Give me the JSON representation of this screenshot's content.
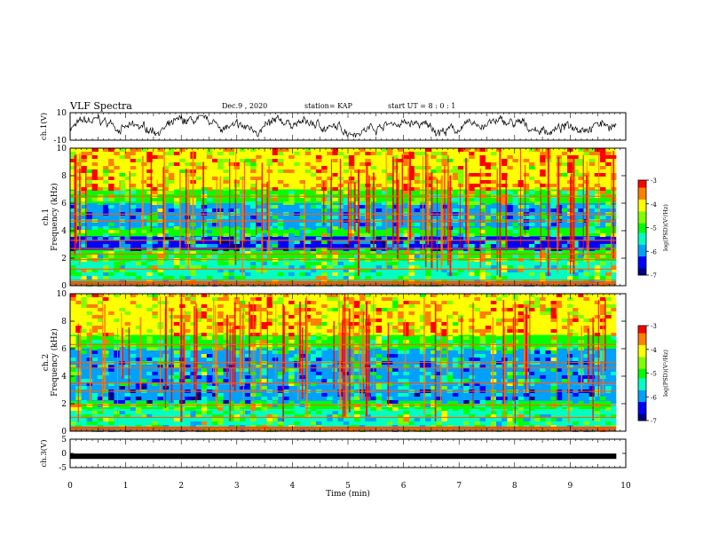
{
  "header": {
    "title": "VLF Spectra",
    "date": "Dec.9 , 2020",
    "station": "station= KAP",
    "start_ut": "start UT = 8 : 0 : 1"
  },
  "colors": {
    "scale": [
      "#000080",
      "#0000ff",
      "#00a0ff",
      "#00ffc0",
      "#00ff00",
      "#80ff00",
      "#ffff00",
      "#ff8000",
      "#ff0000",
      "#ffffff"
    ],
    "trace": "#000000"
  },
  "chart_data": [
    {
      "type": "line",
      "panel": "ch1-waveform",
      "ylabel": "ch.1(V)",
      "ylim": [
        -10,
        10
      ],
      "yticks": [
        "10",
        "-10"
      ],
      "note": "noisy waveform fluctuating roughly between -7 and 7 V",
      "x_range": [
        0,
        9.83
      ]
    },
    {
      "type": "heatmap",
      "panel": "ch1-spectrogram",
      "ylabel": "ch.1\nFrequency (kHz)",
      "ylim": [
        0,
        10
      ],
      "yticks": [
        "0",
        "2",
        "4",
        "6",
        "8",
        "10"
      ],
      "colorbar": {
        "label": "log(PSD)(V²/Hz)",
        "range": [
          -7,
          -3
        ],
        "ticks": [
          "-3",
          "-4",
          "-5",
          "-6",
          "-7"
        ]
      },
      "spectral_lines_khz": [
        0.4,
        1.2,
        1.9,
        2.3,
        2.7,
        3.3,
        4.7,
        5.2,
        6.5
      ],
      "bands": [
        {
          "from": 0.0,
          "to": 1.8,
          "level": -5.3
        },
        {
          "from": 1.8,
          "to": 2.6,
          "level": -5.0
        },
        {
          "from": 2.6,
          "to": 3.6,
          "level": -6.3
        },
        {
          "from": 3.6,
          "to": 4.2,
          "level": -5.2
        },
        {
          "from": 4.2,
          "to": 6.0,
          "level": -5.9
        },
        {
          "from": 6.0,
          "to": 7.0,
          "level": -5.0
        },
        {
          "from": 7.0,
          "to": 10.0,
          "level": -4.0
        }
      ]
    },
    {
      "type": "heatmap",
      "panel": "ch2-spectrogram",
      "ylabel": "ch.2\nFrequency (kHz)",
      "ylim": [
        0,
        10
      ],
      "yticks": [
        "0",
        "2",
        "4",
        "6",
        "8",
        "10"
      ],
      "colorbar": {
        "label": "log(PSD)(V²/Hz)",
        "range": [
          -7,
          -3
        ],
        "ticks": [
          "-3",
          "-4",
          "-5",
          "-6",
          "-7"
        ]
      },
      "spectral_lines_khz": [
        0.3,
        1.0,
        1.9,
        2.9,
        3.5,
        4.6,
        5.0,
        6.3
      ],
      "bands": [
        {
          "from": 0.0,
          "to": 1.6,
          "level": -5.3
        },
        {
          "from": 1.6,
          "to": 2.2,
          "level": -5.0
        },
        {
          "from": 2.2,
          "to": 3.4,
          "level": -6.2
        },
        {
          "from": 3.4,
          "to": 4.0,
          "level": -5.8
        },
        {
          "from": 4.0,
          "to": 6.0,
          "level": -5.9
        },
        {
          "from": 6.0,
          "to": 7.0,
          "level": -5.0
        },
        {
          "from": 7.0,
          "to": 10.0,
          "level": -4.0
        }
      ]
    },
    {
      "type": "line",
      "panel": "ch3-waveform",
      "ylabel": "ch.3(V)",
      "ylim": [
        -5,
        5
      ],
      "yticks": [
        "5",
        "0",
        "-5"
      ],
      "note": "thick near-constant trace around -1 V",
      "level": -1,
      "x_range": [
        0,
        9.83
      ]
    }
  ],
  "xaxis": {
    "label": "Time (min)",
    "range": [
      0,
      10
    ],
    "ticks": [
      "0",
      "1",
      "2",
      "3",
      "4",
      "5",
      "6",
      "7",
      "8",
      "9",
      "10"
    ]
  }
}
